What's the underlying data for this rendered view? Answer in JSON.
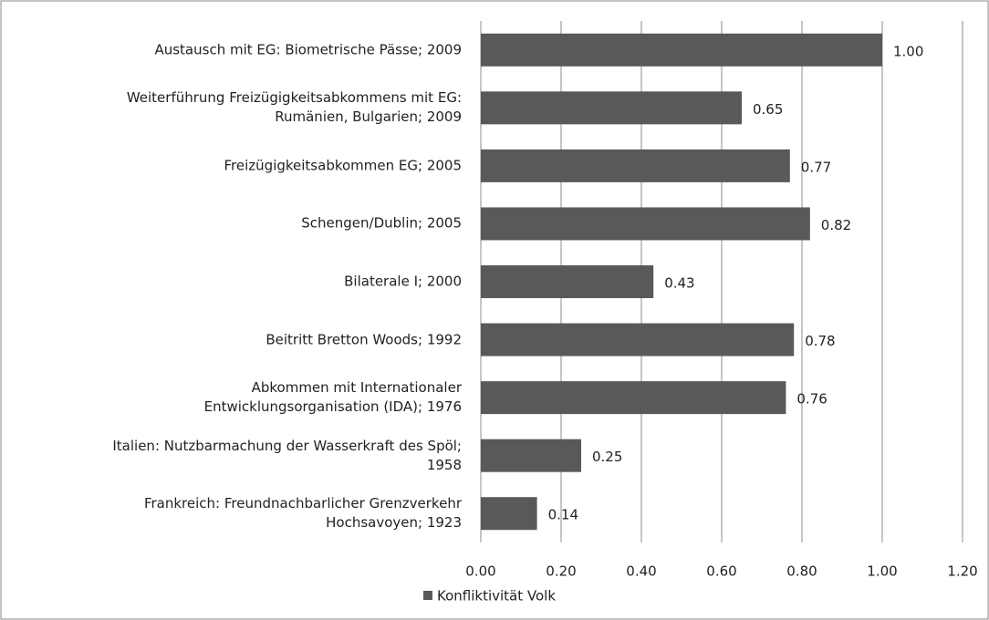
{
  "chart_data": {
    "type": "bar",
    "orientation": "horizontal",
    "categories": [
      "Austausch mit EG: Biometrische Pässe; 2009",
      "Weiterführung Freizügigkeitsabkommens mit EG:\nRumänien, Bulgarien; 2009",
      "Freizügigkeitsabkommen EG; 2005",
      "Schengen/Dublin; 2005",
      "Bilaterale I; 2000",
      "Beitritt Bretton Woods; 1992",
      "Abkommen mit Internationaler\nEntwicklungsorganisation (IDA); 1976",
      "Italien: Nutzbarmachung der Wasserkraft des Spöl;\n1958",
      "Frankreich: Freundnachbarlicher Grenzverkehr\nHochsavoyen; 1923"
    ],
    "series": [
      {
        "name": "Konfliktivität Volk",
        "color": "#595959",
        "values": [
          1.0,
          0.65,
          0.77,
          0.82,
          0.43,
          0.78,
          0.76,
          0.25,
          0.14
        ],
        "value_labels": [
          "1.00",
          "0.65",
          "0.77",
          "0.82",
          "0.43",
          "0.78",
          "0.76",
          "0.25",
          "0.14"
        ]
      }
    ],
    "xlim": [
      0,
      1.2
    ],
    "xticks": [
      {
        "value": 0,
        "label": "0.00"
      },
      {
        "value": 0.2,
        "label": "0.20"
      },
      {
        "value": 0.4,
        "label": "0.40"
      },
      {
        "value": 0.6,
        "label": "0.60"
      },
      {
        "value": 0.8,
        "label": "0.80"
      },
      {
        "value": 1.0,
        "label": "1.00"
      },
      {
        "value": 1.2,
        "label": "1.20"
      }
    ],
    "grid": true,
    "legend": "bottom"
  }
}
